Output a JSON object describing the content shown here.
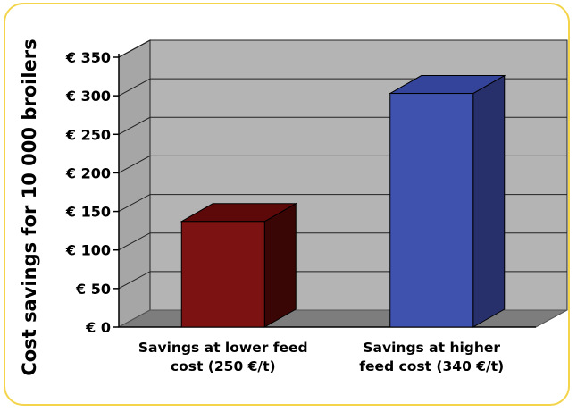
{
  "chart_data": {
    "type": "bar",
    "title": "",
    "ylabel": "Cost savings for 10 000 broilers",
    "xlabel": "",
    "categories": [
      [
        "Savings at lower feed",
        "cost (250 €/t)"
      ],
      [
        "Savings at higher",
        "feed cost (340 €/t)"
      ]
    ],
    "values": [
      137,
      303
    ],
    "ylim": [
      0,
      350
    ],
    "yticks": [
      {
        "value": 0,
        "label": "€ 0"
      },
      {
        "value": 50,
        "label": "€ 50"
      },
      {
        "value": 100,
        "label": "€ 100"
      },
      {
        "value": 150,
        "label": "€ 150"
      },
      {
        "value": 200,
        "label": "€ 200"
      },
      {
        "value": 250,
        "label": "€ 250"
      },
      {
        "value": 300,
        "label": "€ 300"
      },
      {
        "value": 350,
        "label": "€ 350"
      }
    ],
    "grid": true,
    "style": "3d",
    "colors": {
      "bars": [
        {
          "front": "#7d1212",
          "top": "#5e0909",
          "side": "#3a0505"
        },
        {
          "front": "#3f52ad",
          "top": "#34449a",
          "side": "#27306b"
        }
      ],
      "wall": "#b4b4b4",
      "floor": "#7d7d7d",
      "grid": "#222222",
      "frame": "#f3d44a"
    }
  }
}
